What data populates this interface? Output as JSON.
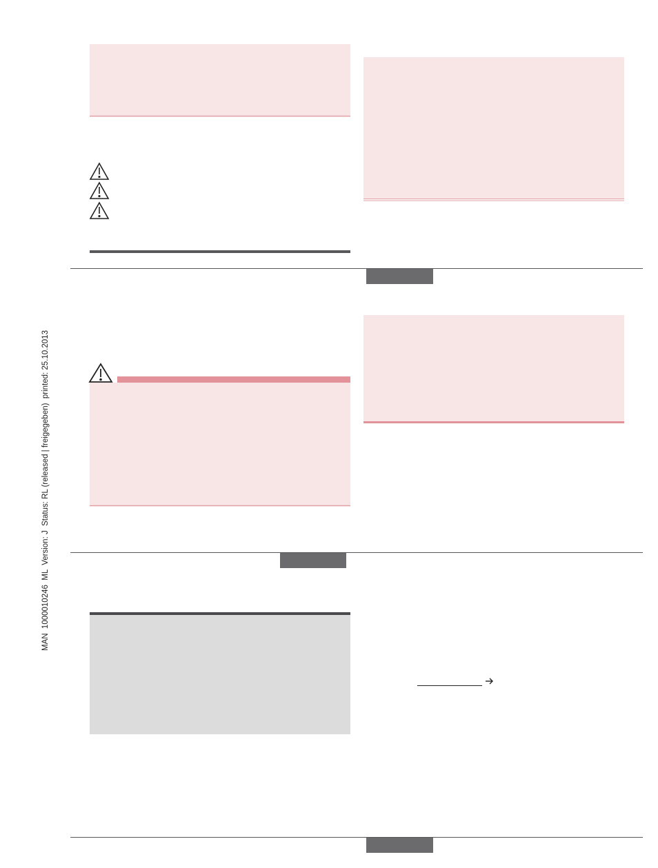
{
  "sidebar": {
    "text": "MAN  1000010246  ML  Version: J  Status: RL (released | freigegeben)  printed: 25.10.2013"
  }
}
